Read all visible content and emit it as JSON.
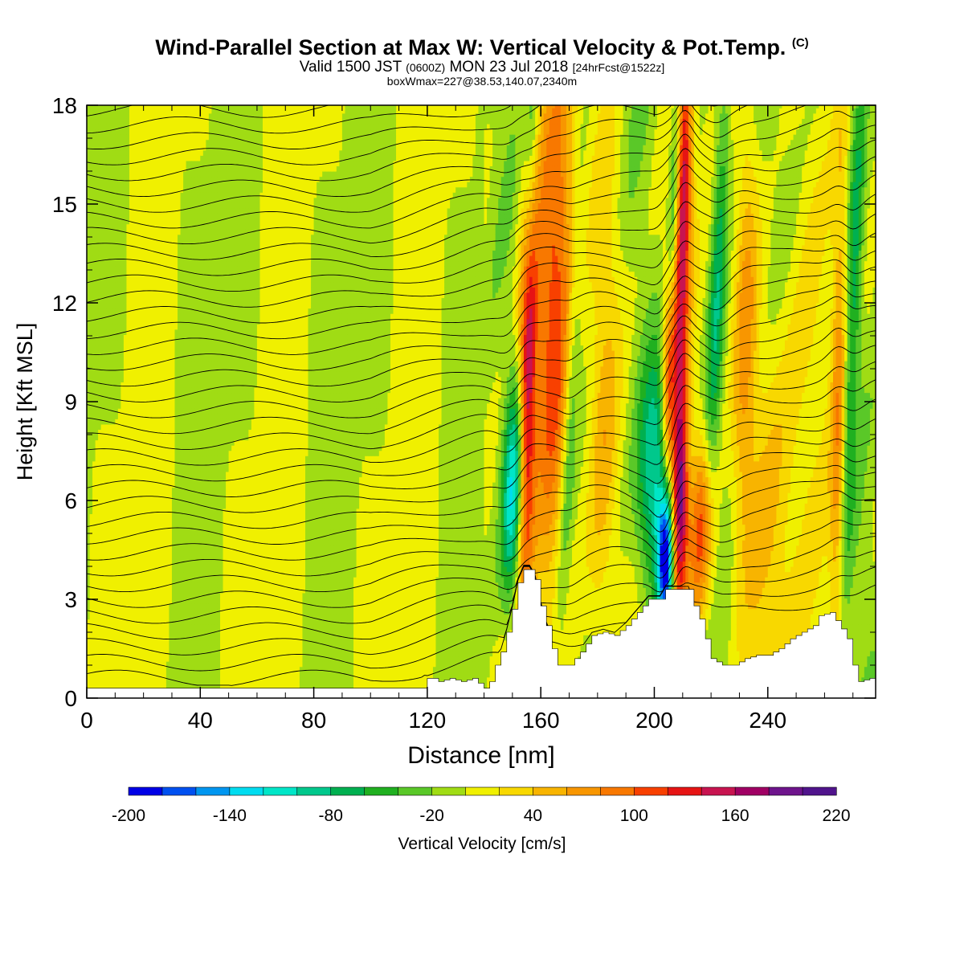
{
  "title": {
    "main": "Wind-Parallel Section at Max W: Vertical Velocity & Pot.Temp.",
    "main_mark": "(C)",
    "valid_prefix": "Valid 1500 JST",
    "valid_utc": "(0600Z)",
    "valid_date": "MON 23 Jul 2018",
    "fcst": "[24hrFcst@1522z]",
    "box": "boxWmax=227@38.53,140.07,2340m"
  },
  "chart_data": {
    "type": "heatmap",
    "xlabel": "Distance [nm]",
    "ylabel": "Height [Kft MSL]",
    "xlim": [
      0,
      278
    ],
    "ylim": [
      0,
      18
    ],
    "xticks": [
      0,
      40,
      80,
      120,
      160,
      200,
      240
    ],
    "yticks": [
      0,
      3,
      6,
      9,
      12,
      15,
      18
    ],
    "colorbar": {
      "label": "Vertical Velocity [cm/s]",
      "min": -200,
      "max": 220,
      "step": 20,
      "tick_labels": [
        "-200",
        "-140",
        "-80",
        "-20",
        "40",
        "100",
        "160",
        "220"
      ],
      "colors": [
        "#0000e6",
        "#0050f0",
        "#0096f0",
        "#00dcf0",
        "#00e6c8",
        "#00c88c",
        "#00b050",
        "#20b020",
        "#5ac828",
        "#a0dc14",
        "#f0f000",
        "#f8d800",
        "#f8b400",
        "#f89600",
        "#f87800",
        "#f84000",
        "#e61414",
        "#c81450",
        "#a00064",
        "#6e148c",
        "#50148c"
      ]
    },
    "terrain_profile": [
      [
        0,
        0.3
      ],
      [
        40,
        0.3
      ],
      [
        80,
        0.3
      ],
      [
        118,
        0.3
      ],
      [
        119,
        0.6
      ],
      [
        122,
        0.6
      ],
      [
        124,
        0.5
      ],
      [
        128,
        0.6
      ],
      [
        132,
        0.5
      ],
      [
        136,
        0.6
      ],
      [
        140,
        0.3
      ],
      [
        142,
        0.5
      ],
      [
        144,
        1.0
      ],
      [
        146,
        1.4
      ],
      [
        148,
        2.0
      ],
      [
        150,
        2.7
      ],
      [
        152,
        3.5
      ],
      [
        154,
        3.9
      ],
      [
        156,
        3.9
      ],
      [
        158,
        3.6
      ],
      [
        160,
        2.8
      ],
      [
        162,
        2.2
      ],
      [
        164,
        1.5
      ],
      [
        166,
        1.0
      ],
      [
        170,
        1.0
      ],
      [
        174,
        1.4
      ],
      [
        178,
        1.9
      ],
      [
        182,
        2.0
      ],
      [
        186,
        1.9
      ],
      [
        190,
        2.2
      ],
      [
        194,
        2.6
      ],
      [
        198,
        3.0
      ],
      [
        202,
        3.0
      ],
      [
        204,
        3.3
      ],
      [
        208,
        3.3
      ],
      [
        212,
        3.3
      ],
      [
        214,
        2.8
      ],
      [
        216,
        2.4
      ],
      [
        218,
        1.8
      ],
      [
        220,
        1.2
      ],
      [
        224,
        1.0
      ],
      [
        228,
        1.0
      ],
      [
        232,
        1.2
      ],
      [
        236,
        1.3
      ],
      [
        240,
        1.3
      ],
      [
        244,
        1.5
      ],
      [
        248,
        1.8
      ],
      [
        252,
        2.0
      ],
      [
        256,
        2.2
      ],
      [
        258,
        2.5
      ],
      [
        262,
        2.6
      ],
      [
        266,
        2.1
      ],
      [
        268,
        1.8
      ],
      [
        270,
        1.0
      ],
      [
        272,
        0.5
      ],
      [
        276,
        0.6
      ],
      [
        278,
        0.3
      ]
    ],
    "w_features": [
      {
        "x": 155,
        "z": 9.5,
        "amp": 200,
        "sx": 2.2,
        "sz": 4.5,
        "tilt": 0.18
      },
      {
        "x": 151,
        "z": 6.5,
        "amp": -140,
        "sx": 3.0,
        "sz": 2.5,
        "tilt": 0.4
      },
      {
        "x": 156,
        "z": 15.0,
        "amp": -80,
        "sx": 1.8,
        "sz": 4.0,
        "tilt": 0.35
      },
      {
        "x": 165,
        "z": 12.0,
        "amp": 100,
        "sx": 5.0,
        "sz": 6.0,
        "tilt": 0.2
      },
      {
        "x": 170,
        "z": 8.0,
        "amp": -60,
        "sx": 2.0,
        "sz": 5.0,
        "tilt": 0.5
      },
      {
        "x": 204,
        "z": 4.2,
        "amp": -200,
        "sx": 2.0,
        "sz": 1.5,
        "tilt": 0.1
      },
      {
        "x": 200,
        "z": 7.0,
        "amp": -110,
        "sx": 4.0,
        "sz": 2.5,
        "tilt": 0.4
      },
      {
        "x": 209,
        "z": 6.0,
        "amp": 180,
        "sx": 2.0,
        "sz": 2.5,
        "tilt": 0.1
      },
      {
        "x": 205,
        "z": 10.0,
        "amp": 140,
        "sx": 1.6,
        "sz": 2.5,
        "tilt": 0.2
      },
      {
        "x": 210,
        "z": 15.0,
        "amp": 160,
        "sx": 2.0,
        "sz": 4.0,
        "tilt": 0.2
      },
      {
        "x": 207,
        "z": 15.0,
        "amp": -90,
        "sx": 1.5,
        "sz": 4.0,
        "tilt": 0.4
      },
      {
        "x": 217,
        "z": 5.0,
        "amp": 110,
        "sx": 3.0,
        "sz": 2.0,
        "tilt": 0.2
      },
      {
        "x": 222,
        "z": 12.0,
        "amp": -70,
        "sx": 2.0,
        "sz": 6.0,
        "tilt": 0.45
      },
      {
        "x": 232,
        "z": 11.0,
        "amp": 60,
        "sx": 3.0,
        "sz": 5.0,
        "tilt": 0.2
      },
      {
        "x": 265,
        "z": 8.0,
        "amp": 80,
        "sx": 2.0,
        "sz": 6.0,
        "tilt": 0.1
      },
      {
        "x": 270,
        "z": 12.0,
        "amp": -70,
        "sx": 2.0,
        "sz": 7.0,
        "tilt": 0.4
      },
      {
        "x": 182,
        "z": 8.0,
        "amp": 60,
        "sx": 4.0,
        "sz": 6.0,
        "tilt": 0.2
      },
      {
        "x": 240,
        "z": 6.0,
        "amp": 40,
        "sx": 8.0,
        "sz": 5.0,
        "tilt": 0.1
      }
    ]
  }
}
